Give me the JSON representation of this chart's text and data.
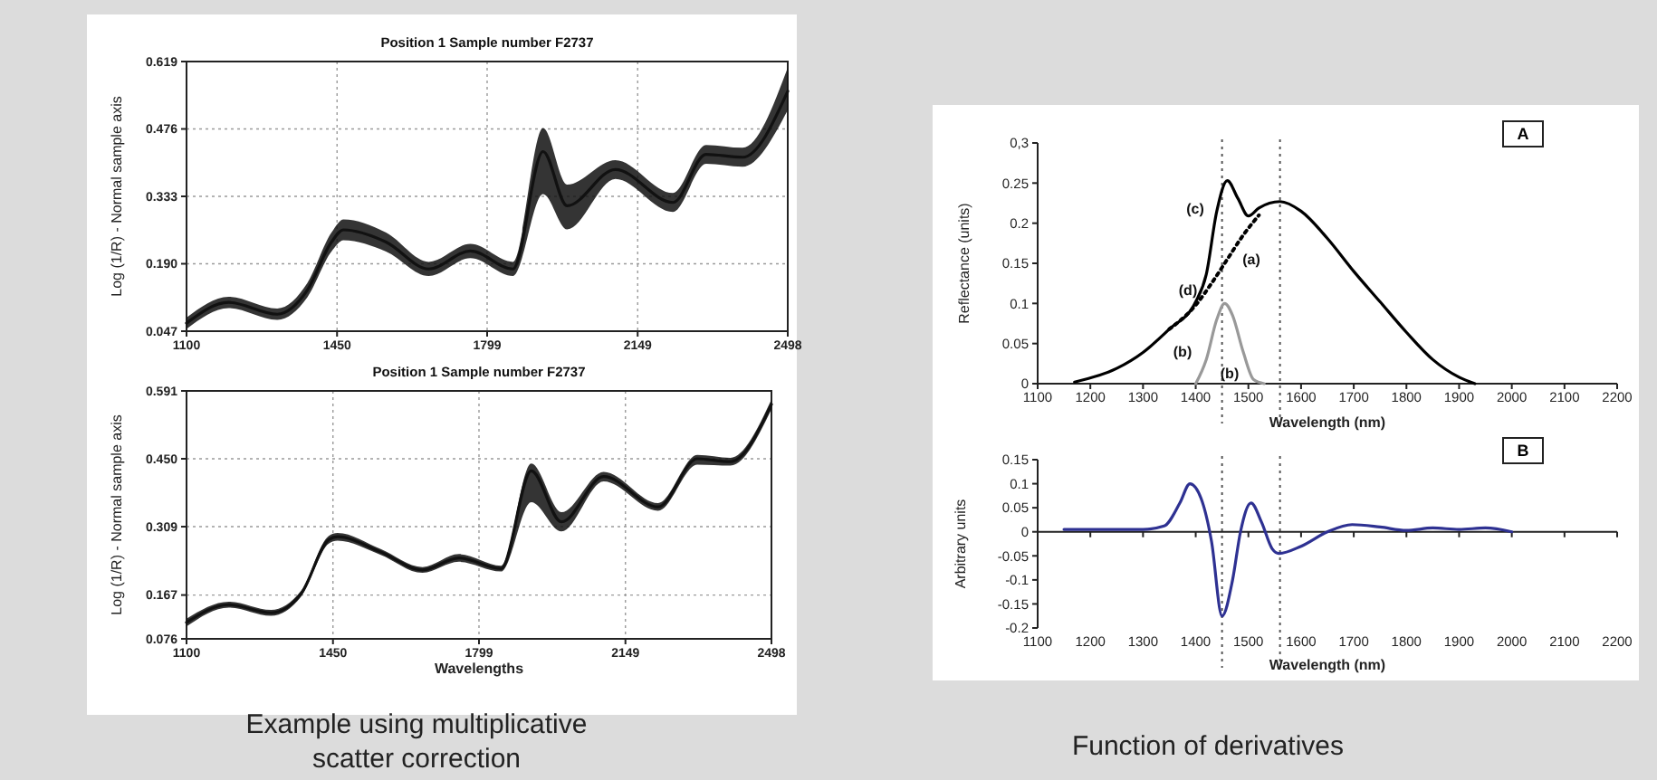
{
  "chart_data": [
    {
      "type": "line",
      "title": "Position 1  Sample number F2737",
      "ylabel": "Log (1/R) - Normal sample axis",
      "xlim": [
        1100,
        2498
      ],
      "ylim": [
        0.047,
        0.619
      ],
      "xticks": [
        1100,
        1450,
        1799,
        2149,
        2498
      ],
      "yticks": [
        {
          "value": 0.047,
          "label": "0.047"
        },
        {
          "value": 0.19,
          "label": "0.190"
        },
        {
          "value": 0.333,
          "label": "0.333"
        },
        {
          "value": 0.476,
          "label": "0.476"
        },
        {
          "value": 0.619,
          "label": "0.619"
        }
      ],
      "grid": true,
      "series": [
        {
          "color": "#111111",
          "x": [
            1100,
            1198,
            1311,
            1381,
            1437,
            1465,
            1564,
            1663,
            1760,
            1859,
            1929,
            1985,
            2097,
            2231,
            2308,
            2393,
            2498
          ],
          "values": [
            0.064,
            0.108,
            0.083,
            0.134,
            0.236,
            0.262,
            0.236,
            0.179,
            0.217,
            0.179,
            0.428,
            0.313,
            0.39,
            0.32,
            0.422,
            0.416,
            0.556
          ],
          "lower": [
            0.052,
            0.096,
            0.071,
            0.119,
            0.216,
            0.24,
            0.216,
            0.164,
            0.202,
            0.164,
            0.338,
            0.263,
            0.37,
            0.3,
            0.402,
            0.396,
            0.516
          ],
          "upper": [
            0.076,
            0.12,
            0.095,
            0.149,
            0.256,
            0.284,
            0.256,
            0.194,
            0.232,
            0.194,
            0.478,
            0.358,
            0.41,
            0.34,
            0.442,
            0.436,
            0.606
          ]
        }
      ]
    },
    {
      "type": "line",
      "title": "Position 1  Sample number F2737",
      "xlabel": "Wavelengths",
      "ylabel": "Log (1/R) - Normal sample axis",
      "xlim": [
        1100,
        2498
      ],
      "ylim": [
        0.076,
        0.591
      ],
      "xticks": [
        1100,
        1450,
        1799,
        2149,
        2498
      ],
      "yticks": [
        {
          "value": 0.076,
          "label": "0.076"
        },
        {
          "value": 0.167,
          "label": "0.167"
        },
        {
          "value": 0.309,
          "label": "0.309"
        },
        {
          "value": 0.45,
          "label": "0.450"
        },
        {
          "value": 0.591,
          "label": "0.591"
        }
      ],
      "grid": true,
      "series": [
        {
          "color": "#111111",
          "x": [
            1100,
            1201,
            1302,
            1374,
            1440,
            1461,
            1563,
            1664,
            1751,
            1852,
            1924,
            1996,
            2097,
            2227,
            2321,
            2400,
            2498
          ],
          "values": [
            0.11,
            0.147,
            0.13,
            0.17,
            0.282,
            0.288,
            0.257,
            0.219,
            0.244,
            0.222,
            0.425,
            0.319,
            0.413,
            0.35,
            0.45,
            0.444,
            0.563
          ],
          "lower": [
            0.102,
            0.141,
            0.124,
            0.164,
            0.274,
            0.28,
            0.251,
            0.213,
            0.236,
            0.216,
            0.36,
            0.299,
            0.403,
            0.342,
            0.438,
            0.436,
            0.553
          ],
          "upper": [
            0.118,
            0.153,
            0.136,
            0.176,
            0.29,
            0.296,
            0.263,
            0.225,
            0.252,
            0.228,
            0.44,
            0.339,
            0.423,
            0.358,
            0.458,
            0.452,
            0.573
          ]
        }
      ],
      "annotations": [
        "Example using multiplicative scatter correction"
      ]
    },
    {
      "type": "line",
      "title": "A",
      "xlabel": "Wavelength (nm)",
      "ylabel": "Reflectance (units)",
      "xlim": [
        1100,
        2200
      ],
      "ylim": [
        0,
        0.3
      ],
      "xticks": [
        1100,
        1200,
        1300,
        1400,
        1500,
        1600,
        1700,
        1800,
        1900,
        2000,
        2100,
        2200
      ],
      "yticks": [
        0,
        0.05,
        0.1,
        0.15,
        0.2,
        0.25,
        {
          "value": 0.3,
          "label": "0,3"
        }
      ],
      "series": [
        {
          "color": "#000000",
          "x": [
            1170,
            1250,
            1300,
            1350,
            1400,
            1420,
            1440,
            1460,
            1480,
            1500,
            1520,
            1560,
            1600,
            1650,
            1700,
            1750,
            1800,
            1850,
            1900,
            1930
          ],
          "values": [
            0.002,
            0.019,
            0.039,
            0.068,
            0.102,
            0.136,
            0.215,
            0.253,
            0.231,
            0.209,
            0.219,
            0.227,
            0.215,
            0.181,
            0.14,
            0.102,
            0.064,
            0.03,
            0.008,
            0
          ]
        },
        {
          "color": "#000000",
          "line_style": "dotted",
          "x": [
            1350,
            1400,
            1430,
            1460,
            1490,
            1520
          ],
          "values": [
            0.068,
            0.098,
            0.125,
            0.155,
            0.185,
            0.21
          ]
        },
        {
          "color": "#999999",
          "x": [
            1400,
            1420,
            1440,
            1455,
            1470,
            1490,
            1510,
            1530
          ],
          "values": [
            0,
            0.03,
            0.08,
            0.1,
            0.085,
            0.04,
            0.005,
            0
          ]
        }
      ],
      "ref_lines": [
        {
          "axis": "x",
          "value": 1450,
          "color": "#555555",
          "line_style": "dotted"
        },
        {
          "axis": "x",
          "value": 1560,
          "color": "#555555",
          "line_style": "dotted"
        }
      ],
      "annotations": [
        "(c)",
        "(a)",
        "(d)",
        "(b)",
        "(b)"
      ]
    },
    {
      "type": "line",
      "title": "B",
      "xlabel": "Wavelength (nm)",
      "ylabel": "Arbitrary units",
      "xlim": [
        1100,
        2200
      ],
      "ylim": [
        -0.2,
        0.15
      ],
      "xticks": [
        1100,
        1200,
        1300,
        1400,
        1500,
        1600,
        1700,
        1800,
        1900,
        2000,
        2100,
        2200
      ],
      "yticks": [
        -0.2,
        -0.15,
        -0.1,
        -0.05,
        0,
        0.05,
        0.1,
        0.15
      ],
      "series": [
        {
          "color": "#2e3192",
          "x": [
            1150,
            1300,
            1340,
            1370,
            1389,
            1410,
            1430,
            1450,
            1470,
            1485,
            1505,
            1525,
            1545,
            1558,
            1600,
            1650,
            1697,
            1750,
            1800,
            1850,
            1900,
            1950,
            2000
          ],
          "values": [
            0.005,
            0.005,
            0.012,
            0.06,
            0.1,
            0.07,
            -0.02,
            -0.175,
            -0.1,
            0,
            0.06,
            0.02,
            -0.035,
            -0.045,
            -0.03,
            0,
            0.015,
            0.01,
            0.003,
            0.008,
            0.005,
            0.008,
            0
          ]
        }
      ],
      "ref_lines": [
        {
          "axis": "x",
          "value": 1450,
          "color": "#555555",
          "line_style": "dotted"
        },
        {
          "axis": "x",
          "value": 1560,
          "color": "#555555",
          "line_style": "dotted"
        }
      ],
      "annotations": [
        "Function of derivatives"
      ]
    }
  ]
}
